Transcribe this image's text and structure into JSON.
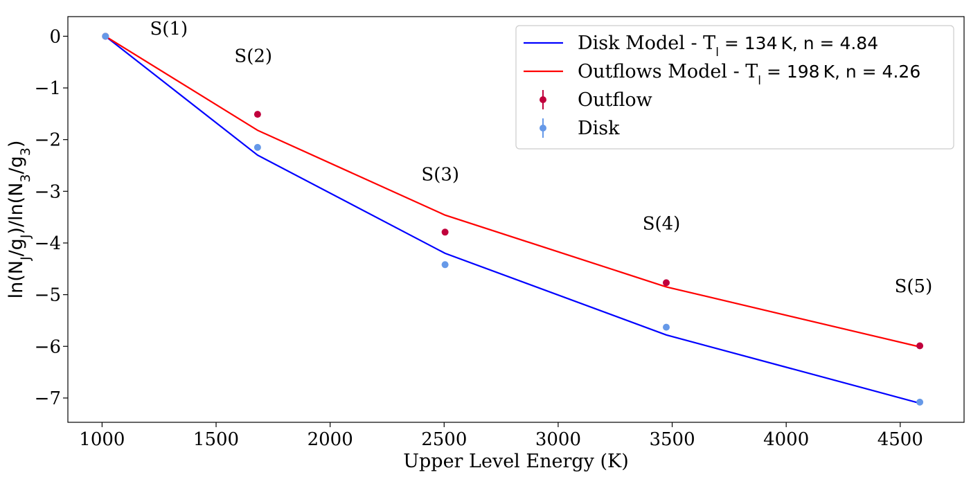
{
  "chart_data": {
    "type": "line",
    "xlabel": "Upper Level Energy (K)",
    "ylabel": "ln(N_J/g_J)/ln(N_3/g_3)",
    "xlim": [
      850,
      4780
    ],
    "ylim": [
      -7.47,
      0.38
    ],
    "x_ticks": [
      1000,
      1500,
      2000,
      2500,
      3000,
      3500,
      4000,
      4500
    ],
    "x_tick_labels": [
      "1000",
      "1500",
      "2000",
      "2500",
      "3000",
      "3500",
      "4000",
      "4500"
    ],
    "y_ticks": [
      0,
      -1,
      -2,
      -3,
      -4,
      -5,
      -6,
      -7
    ],
    "y_tick_labels": [
      "0",
      "−1",
      "−2",
      "−3",
      "−4",
      "−5",
      "−6",
      "−7"
    ],
    "grid": false,
    "legend_position": "top-right",
    "x": [
      1015,
      1682,
      2504,
      3474,
      4586
    ],
    "series": [
      {
        "name": "Disk Model - T_l = 134 K, n = 4.84",
        "kind": "line",
        "color": "#0000ff",
        "values": [
          0,
          -2.3,
          -4.2,
          -5.78,
          -7.1
        ]
      },
      {
        "name": "Outflows Model - T_l = 198 K, n = 4.26",
        "kind": "line",
        "color": "#ff0000",
        "values": [
          0,
          -1.82,
          -3.46,
          -4.85,
          -6.01
        ]
      },
      {
        "name": "Outflow",
        "kind": "points",
        "color": "#c0003c",
        "values": [
          0,
          -1.51,
          -3.79,
          -4.77,
          -5.99
        ]
      },
      {
        "name": "Disk",
        "kind": "points",
        "color": "#6699e8",
        "values": [
          0,
          -2.15,
          -4.42,
          -5.63,
          -7.08
        ]
      }
    ],
    "annotations": [
      {
        "text": "S(1)",
        "x": 1210,
        "y": 0.03
      },
      {
        "text": "S(2)",
        "x": 1580,
        "y": -0.5
      },
      {
        "text": "S(3)",
        "x": 2400,
        "y": -2.79
      },
      {
        "text": "S(4)",
        "x": 3370,
        "y": -3.74
      },
      {
        "text": "S(5)",
        "x": 4475,
        "y": -4.95
      }
    ],
    "legend": [
      {
        "kind": "line",
        "color": "#0000ff",
        "label_pre": "Disk Model - T",
        "label_sub": "l",
        "label_post": " = 134 K, n = 4.84"
      },
      {
        "kind": "line",
        "color": "#ff0000",
        "label_pre": "Outflows Model - T",
        "label_sub": "l",
        "label_post": " = 198 K, n = 4.26"
      },
      {
        "kind": "marker",
        "color": "#c0003c",
        "label_pre": "Outflow",
        "label_sub": "",
        "label_post": ""
      },
      {
        "kind": "marker",
        "color": "#6699e8",
        "label_pre": "Disk",
        "label_sub": "",
        "label_post": ""
      }
    ]
  }
}
